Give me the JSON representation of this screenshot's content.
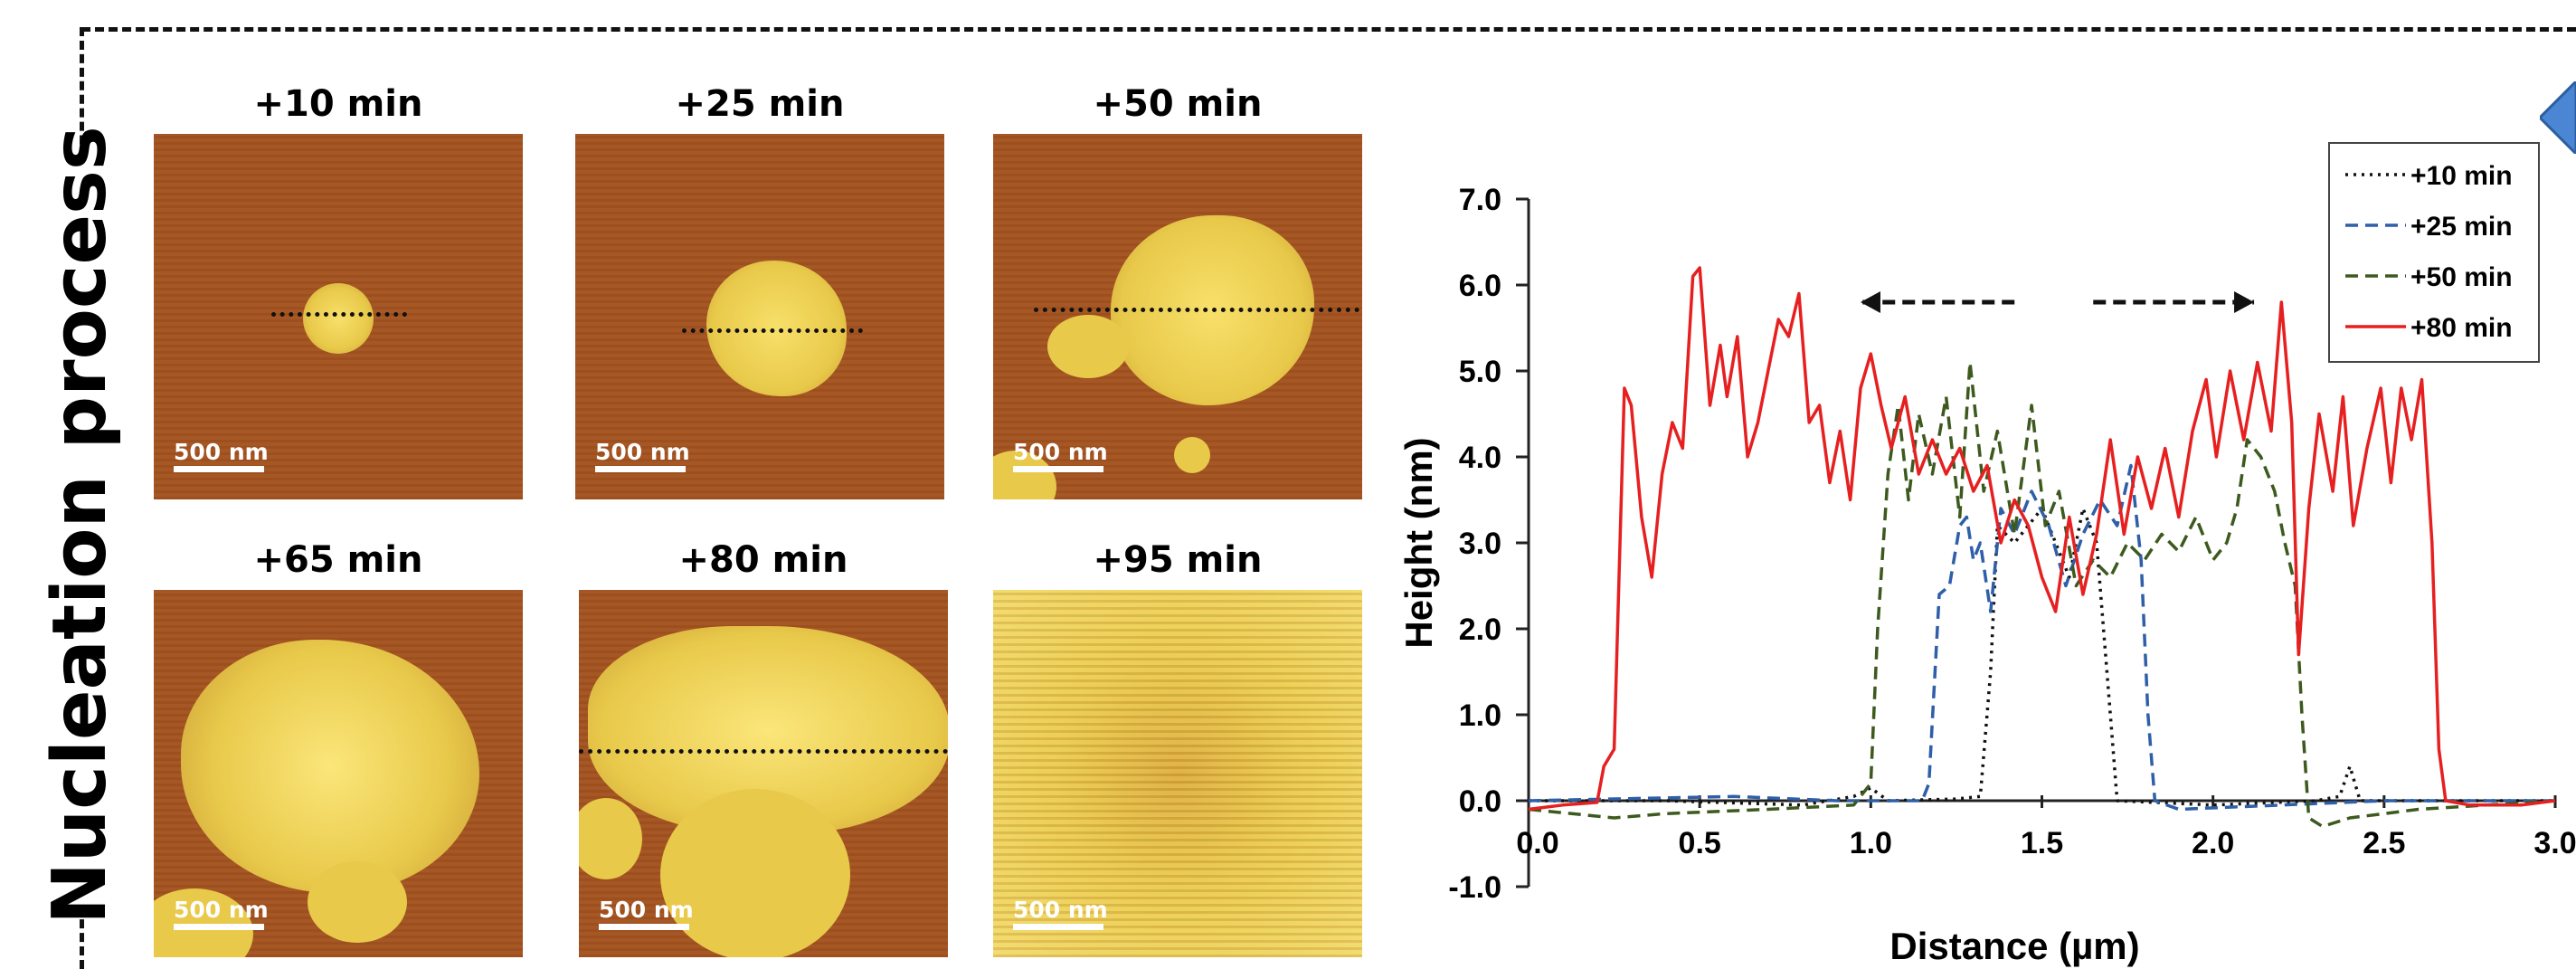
{
  "side_title": "Nucleation process",
  "panels": [
    {
      "label": "+10 min",
      "scale": "500 nm"
    },
    {
      "label": "+25 min",
      "scale": "500 nm"
    },
    {
      "label": "+50 min",
      "scale": "500 nm"
    },
    {
      "label": "+65 min",
      "scale": "500 nm"
    },
    {
      "label": "+80 min",
      "scale": "500 nm"
    },
    {
      "label": "+95 min",
      "scale": "500 nm"
    }
  ],
  "colors": {
    "afm_background": "#a3521f",
    "afm_island": "#e8c94a",
    "series_10": "#111111",
    "series_25": "#2e5fa8",
    "series_50": "#3d5a1e",
    "series_80": "#e62020",
    "callout": "#4a86d4"
  },
  "chart_data": {
    "type": "line",
    "xlabel": "Distance (µm)",
    "ylabel": "Height (nm)",
    "xlim": [
      0,
      3.0
    ],
    "ylim": [
      -1.0,
      7.0
    ],
    "xticks": [
      "0.0",
      "0.5",
      "1.0",
      "1.5",
      "2.0",
      "2.5",
      "3.0"
    ],
    "yticks": [
      "-1.0",
      "0.0",
      "1.0",
      "2.0",
      "3.0",
      "4.0",
      "5.0",
      "6.0",
      "7.0"
    ],
    "grid": false,
    "legend_position": "top-right",
    "annotations": [
      "arrow pointing left near x 1.0–1.45 at y 5.8",
      "arrow pointing right near x 1.65–2.1 at y 5.8"
    ],
    "series": [
      {
        "name": "+10 min",
        "style": "dotted",
        "color": "#111111",
        "points": [
          [
            0,
            0
          ],
          [
            0.4,
            0
          ],
          [
            0.8,
            -0.05
          ],
          [
            0.95,
            0.05
          ],
          [
            1.0,
            0.15
          ],
          [
            1.05,
            0
          ],
          [
            1.25,
            0.02
          ],
          [
            1.32,
            0.05
          ],
          [
            1.35,
            1.5
          ],
          [
            1.37,
            3.2
          ],
          [
            1.42,
            3.0
          ],
          [
            1.5,
            3.4
          ],
          [
            1.58,
            2.6
          ],
          [
            1.62,
            3.4
          ],
          [
            1.66,
            3.0
          ],
          [
            1.7,
            1.0
          ],
          [
            1.72,
            0
          ],
          [
            2.0,
            -0.05
          ],
          [
            2.3,
            0
          ],
          [
            2.37,
            0.05
          ],
          [
            2.4,
            0.4
          ],
          [
            2.43,
            0
          ],
          [
            3.0,
            0
          ]
        ]
      },
      {
        "name": "+25 min",
        "style": "dashed",
        "color": "#2e5fa8",
        "points": [
          [
            0,
            0
          ],
          [
            0.6,
            0.05
          ],
          [
            0.9,
            0
          ],
          [
            1.15,
            0
          ],
          [
            1.17,
            0.2
          ],
          [
            1.2,
            2.4
          ],
          [
            1.23,
            2.5
          ],
          [
            1.26,
            3.2
          ],
          [
            1.28,
            3.3
          ],
          [
            1.3,
            2.8
          ],
          [
            1.32,
            3.0
          ],
          [
            1.35,
            2.2
          ],
          [
            1.38,
            3.4
          ],
          [
            1.42,
            3.1
          ],
          [
            1.47,
            3.6
          ],
          [
            1.52,
            3.2
          ],
          [
            1.57,
            2.5
          ],
          [
            1.62,
            3.1
          ],
          [
            1.67,
            3.5
          ],
          [
            1.72,
            3.2
          ],
          [
            1.76,
            3.9
          ],
          [
            1.79,
            2.8
          ],
          [
            1.81,
            1.0
          ],
          [
            1.83,
            0
          ],
          [
            1.9,
            -0.1
          ],
          [
            2.2,
            -0.05
          ],
          [
            2.5,
            0
          ],
          [
            3.0,
            0
          ]
        ]
      },
      {
        "name": "+50 min",
        "style": "dashed",
        "color": "#3d5a1e",
        "points": [
          [
            0,
            -0.1
          ],
          [
            0.25,
            -0.2
          ],
          [
            0.4,
            -0.15
          ],
          [
            0.7,
            -0.1
          ],
          [
            0.95,
            -0.05
          ],
          [
            1.0,
            0.2
          ],
          [
            1.02,
            2.0
          ],
          [
            1.05,
            3.8
          ],
          [
            1.08,
            4.6
          ],
          [
            1.11,
            3.5
          ],
          [
            1.14,
            4.5
          ],
          [
            1.18,
            3.8
          ],
          [
            1.22,
            4.7
          ],
          [
            1.26,
            3.3
          ],
          [
            1.29,
            5.1
          ],
          [
            1.33,
            3.6
          ],
          [
            1.37,
            4.3
          ],
          [
            1.42,
            3.1
          ],
          [
            1.47,
            4.6
          ],
          [
            1.51,
            3.2
          ],
          [
            1.55,
            3.6
          ],
          [
            1.6,
            2.5
          ],
          [
            1.65,
            2.8
          ],
          [
            1.7,
            2.6
          ],
          [
            1.75,
            3.0
          ],
          [
            1.8,
            2.8
          ],
          [
            1.85,
            3.1
          ],
          [
            1.9,
            2.9
          ],
          [
            1.95,
            3.3
          ],
          [
            2.0,
            2.8
          ],
          [
            2.04,
            3.0
          ],
          [
            2.07,
            3.4
          ],
          [
            2.1,
            4.2
          ],
          [
            2.14,
            4.0
          ],
          [
            2.18,
            3.6
          ],
          [
            2.21,
            3.0
          ],
          [
            2.24,
            2.5
          ],
          [
            2.26,
            1.0
          ],
          [
            2.28,
            -0.2
          ],
          [
            2.32,
            -0.3
          ],
          [
            2.4,
            -0.2
          ],
          [
            2.5,
            -0.15
          ],
          [
            2.6,
            -0.1
          ],
          [
            2.8,
            -0.05
          ],
          [
            3.0,
            0
          ]
        ]
      },
      {
        "name": "+80 min",
        "style": "solid",
        "color": "#e62020",
        "points": [
          [
            0,
            -0.1
          ],
          [
            0.1,
            -0.05
          ],
          [
            0.2,
            -0.02
          ],
          [
            0.22,
            0.4
          ],
          [
            0.25,
            0.6
          ],
          [
            0.28,
            4.8
          ],
          [
            0.3,
            4.6
          ],
          [
            0.33,
            3.3
          ],
          [
            0.36,
            2.6
          ],
          [
            0.39,
            3.8
          ],
          [
            0.42,
            4.4
          ],
          [
            0.45,
            4.1
          ],
          [
            0.48,
            6.1
          ],
          [
            0.5,
            6.2
          ],
          [
            0.53,
            4.6
          ],
          [
            0.56,
            5.3
          ],
          [
            0.58,
            4.7
          ],
          [
            0.61,
            5.4
          ],
          [
            0.64,
            4.0
          ],
          [
            0.67,
            4.4
          ],
          [
            0.7,
            5.0
          ],
          [
            0.73,
            5.6
          ],
          [
            0.76,
            5.4
          ],
          [
            0.79,
            5.9
          ],
          [
            0.82,
            4.4
          ],
          [
            0.85,
            4.6
          ],
          [
            0.88,
            3.7
          ],
          [
            0.91,
            4.3
          ],
          [
            0.94,
            3.5
          ],
          [
            0.97,
            4.8
          ],
          [
            1.0,
            5.2
          ],
          [
            1.03,
            4.6
          ],
          [
            1.06,
            4.1
          ],
          [
            1.1,
            4.7
          ],
          [
            1.14,
            3.8
          ],
          [
            1.18,
            4.2
          ],
          [
            1.22,
            3.8
          ],
          [
            1.26,
            4.1
          ],
          [
            1.3,
            3.6
          ],
          [
            1.34,
            3.9
          ],
          [
            1.38,
            3.0
          ],
          [
            1.42,
            3.5
          ],
          [
            1.46,
            3.2
          ],
          [
            1.5,
            2.6
          ],
          [
            1.54,
            2.2
          ],
          [
            1.58,
            3.3
          ],
          [
            1.62,
            2.4
          ],
          [
            1.66,
            3.1
          ],
          [
            1.7,
            4.2
          ],
          [
            1.74,
            3.1
          ],
          [
            1.78,
            4.0
          ],
          [
            1.82,
            3.4
          ],
          [
            1.86,
            4.1
          ],
          [
            1.9,
            3.3
          ],
          [
            1.94,
            4.3
          ],
          [
            1.98,
            4.9
          ],
          [
            2.01,
            4.0
          ],
          [
            2.05,
            5.0
          ],
          [
            2.09,
            4.2
          ],
          [
            2.13,
            5.1
          ],
          [
            2.17,
            4.3
          ],
          [
            2.2,
            5.8
          ],
          [
            2.23,
            4.4
          ],
          [
            2.25,
            1.7
          ],
          [
            2.28,
            3.4
          ],
          [
            2.31,
            4.5
          ],
          [
            2.35,
            3.6
          ],
          [
            2.38,
            4.7
          ],
          [
            2.41,
            3.2
          ],
          [
            2.45,
            4.1
          ],
          [
            2.49,
            4.8
          ],
          [
            2.52,
            3.7
          ],
          [
            2.55,
            4.8
          ],
          [
            2.58,
            4.2
          ],
          [
            2.61,
            4.9
          ],
          [
            2.64,
            3.0
          ],
          [
            2.66,
            0.6
          ],
          [
            2.68,
            0
          ],
          [
            2.75,
            -0.05
          ],
          [
            2.9,
            -0.05
          ],
          [
            3.0,
            0
          ]
        ]
      }
    ]
  }
}
